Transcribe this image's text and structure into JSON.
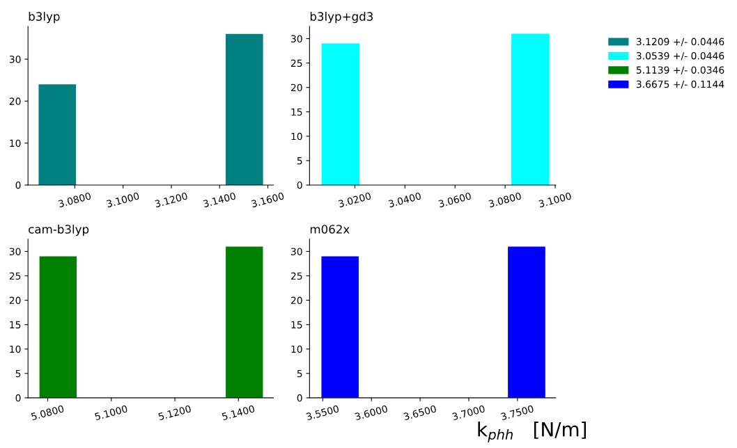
{
  "chart_data": [
    {
      "type": "histogram",
      "title": "b3lyp",
      "legend": "top right",
      "bins": [
        3.065,
        3.0805,
        3.096,
        3.1115,
        3.127,
        3.1425,
        3.158
      ],
      "series": [
        {
          "name": "3.1209 +/- 0.0446",
          "color": "#008080",
          "values": [
            24,
            0,
            0,
            0,
            0,
            36
          ]
        }
      ],
      "xlim": [
        3.0606,
        3.1623
      ],
      "ylim": [
        0,
        37.8
      ],
      "xticks": [
        {
          "value": 3.08,
          "label": "3.0800"
        },
        {
          "value": 3.1,
          "label": "3.1000"
        },
        {
          "value": 3.12,
          "label": "3.1200"
        },
        {
          "value": 3.14,
          "label": "3.1400"
        },
        {
          "value": 3.16,
          "label": "3.1600"
        }
      ],
      "yticks": [
        0,
        10,
        20,
        30
      ]
    },
    {
      "type": "histogram",
      "title": "b3lyp+gd3",
      "legend": "top right",
      "bins": [
        3.0067,
        3.0219,
        3.037,
        3.0522,
        3.0674,
        3.0825,
        3.0977
      ],
      "series": [
        {
          "name": "3.0539 +/- 0.0446",
          "color": "#00ffff",
          "values": [
            29,
            0,
            0,
            0,
            0,
            31
          ]
        }
      ],
      "xlim": [
        3.0019,
        3.1002
      ],
      "ylim": [
        0,
        32.5
      ],
      "xticks": [
        {
          "value": 3.02,
          "label": "3.0200"
        },
        {
          "value": 3.04,
          "label": "3.0400"
        },
        {
          "value": 3.06,
          "label": "3.0600"
        },
        {
          "value": 3.08,
          "label": "3.0800"
        },
        {
          "value": 3.1,
          "label": "3.1000"
        }
      ],
      "yticks": [
        0,
        5,
        10,
        15,
        20,
        25,
        30
      ]
    },
    {
      "type": "histogram",
      "title": "cam-b3lyp",
      "legend": "top right",
      "bins": [
        5.0774,
        5.0891,
        5.1008,
        5.1125,
        5.1243,
        5.136,
        5.1477
      ],
      "series": [
        {
          "name": "5.1139 +/- 0.0346",
          "color": "#008000",
          "values": [
            29,
            0,
            0,
            0,
            0,
            31
          ]
        }
      ],
      "xlim": [
        5.0738,
        5.151
      ],
      "ylim": [
        0,
        32.5
      ],
      "xticks": [
        {
          "value": 5.08,
          "label": "5.0800"
        },
        {
          "value": 5.1,
          "label": "5.1000"
        },
        {
          "value": 5.12,
          "label": "5.1200"
        },
        {
          "value": 5.14,
          "label": "5.1400"
        }
      ],
      "yticks": [
        0,
        5,
        10,
        15,
        20,
        25,
        30
      ]
    },
    {
      "type": "histogram",
      "title": "m062x",
      "legend": "top right",
      "xlabel": "k$_{phh}$   [N/m]",
      "bins": [
        3.5486,
        3.5869,
        3.6252,
        3.6636,
        3.7019,
        3.7402,
        3.7786
      ],
      "series": [
        {
          "name": "3.6675 +/- 0.1144",
          "color": "#0000ff",
          "values": [
            29,
            0,
            0,
            0,
            0,
            31
          ]
        }
      ],
      "xlim": [
        3.5364,
        3.7893
      ],
      "ylim": [
        0,
        32.5
      ],
      "xticks": [
        {
          "value": 3.55,
          "label": "3.5500"
        },
        {
          "value": 3.6,
          "label": "3.6000"
        },
        {
          "value": 3.65,
          "label": "3.6500"
        },
        {
          "value": 3.7,
          "label": "3.7000"
        },
        {
          "value": 3.75,
          "label": "3.7500"
        }
      ],
      "yticks": [
        0,
        5,
        10,
        15,
        20,
        25,
        30
      ]
    }
  ]
}
